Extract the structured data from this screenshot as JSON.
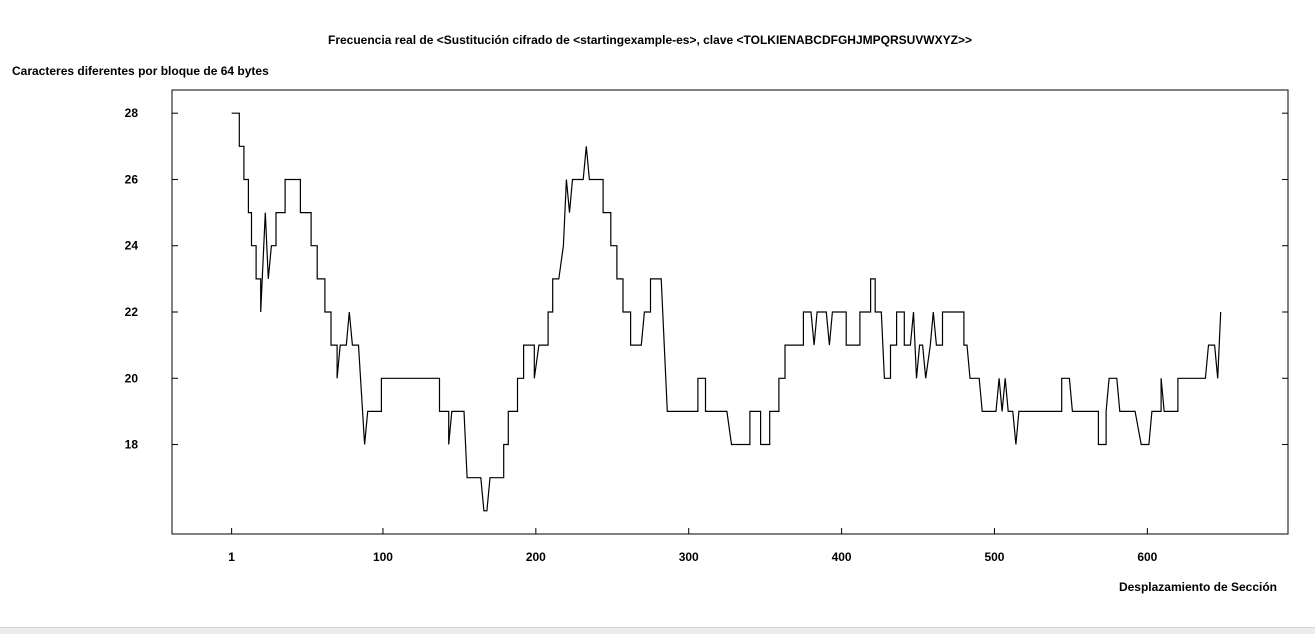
{
  "chart_data": {
    "type": "line",
    "title": "Frecuencia real de <Sustitución cifrado de <startingexample-es>, clave <TOLKIENABCDFGHJMPQRSUVWXYZ>>",
    "ylabel": "Caracteres diferentes por bloque de 64 bytes",
    "xlabel": "Desplazamiento de Sección",
    "xlim": [
      -38,
      692
    ],
    "ylim": [
      15.3,
      28.7
    ],
    "x_ticks": [
      1,
      100,
      200,
      300,
      400,
      500,
      600
    ],
    "y_ticks": [
      18,
      20,
      22,
      24,
      26,
      28
    ],
    "grid": false,
    "series": [
      {
        "color": "#000000",
        "points": [
          [
            1,
            28
          ],
          [
            6,
            28
          ],
          [
            6,
            27
          ],
          [
            9,
            27
          ],
          [
            9,
            26
          ],
          [
            12,
            26
          ],
          [
            12,
            25
          ],
          [
            14,
            25
          ],
          [
            14,
            24
          ],
          [
            17,
            24
          ],
          [
            17,
            23
          ],
          [
            20,
            23
          ],
          [
            20,
            22
          ],
          [
            23,
            25
          ],
          [
            25,
            23
          ],
          [
            27,
            24
          ],
          [
            30,
            24
          ],
          [
            30,
            25
          ],
          [
            36,
            25
          ],
          [
            36,
            26
          ],
          [
            46,
            26
          ],
          [
            46,
            25
          ],
          [
            53,
            25
          ],
          [
            53,
            24
          ],
          [
            57,
            24
          ],
          [
            57,
            23
          ],
          [
            62,
            23
          ],
          [
            62,
            22
          ],
          [
            66,
            22
          ],
          [
            66,
            21
          ],
          [
            70,
            21
          ],
          [
            70,
            20
          ],
          [
            72,
            21
          ],
          [
            76,
            21
          ],
          [
            78,
            22
          ],
          [
            80,
            21
          ],
          [
            84,
            21
          ],
          [
            88,
            18
          ],
          [
            90,
            19
          ],
          [
            99,
            19
          ],
          [
            99,
            20
          ],
          [
            137,
            20
          ],
          [
            137,
            19
          ],
          [
            143,
            19
          ],
          [
            143,
            18
          ],
          [
            145,
            19
          ],
          [
            153,
            19
          ],
          [
            155,
            17
          ],
          [
            164,
            17
          ],
          [
            166,
            16
          ],
          [
            168,
            16
          ],
          [
            170,
            17
          ],
          [
            179,
            17
          ],
          [
            179,
            18
          ],
          [
            182,
            18
          ],
          [
            182,
            19
          ],
          [
            188,
            19
          ],
          [
            188,
            20
          ],
          [
            192,
            20
          ],
          [
            192,
            21
          ],
          [
            199,
            21
          ],
          [
            199,
            20
          ],
          [
            202,
            21
          ],
          [
            208,
            21
          ],
          [
            208,
            22
          ],
          [
            211,
            22
          ],
          [
            211,
            23
          ],
          [
            215,
            23
          ],
          [
            218,
            24
          ],
          [
            220,
            26
          ],
          [
            222,
            25
          ],
          [
            224,
            26
          ],
          [
            231,
            26
          ],
          [
            233,
            27
          ],
          [
            235,
            26
          ],
          [
            244,
            26
          ],
          [
            244,
            25
          ],
          [
            249,
            25
          ],
          [
            249,
            24
          ],
          [
            253,
            24
          ],
          [
            253,
            23
          ],
          [
            257,
            23
          ],
          [
            257,
            22
          ],
          [
            262,
            22
          ],
          [
            262,
            21
          ],
          [
            269,
            21
          ],
          [
            271,
            22
          ],
          [
            275,
            22
          ],
          [
            275,
            23
          ],
          [
            282,
            23
          ],
          [
            286,
            19
          ],
          [
            306,
            19
          ],
          [
            306,
            20
          ],
          [
            311,
            20
          ],
          [
            311,
            19
          ],
          [
            325,
            19
          ],
          [
            328,
            18
          ],
          [
            340,
            18
          ],
          [
            340,
            19
          ],
          [
            347,
            19
          ],
          [
            347,
            18
          ],
          [
            353,
            18
          ],
          [
            353,
            19
          ],
          [
            359,
            19
          ],
          [
            359,
            20
          ],
          [
            363,
            20
          ],
          [
            363,
            21
          ],
          [
            375,
            21
          ],
          [
            375,
            22
          ],
          [
            380,
            22
          ],
          [
            382,
            21
          ],
          [
            384,
            22
          ],
          [
            390,
            22
          ],
          [
            392,
            21
          ],
          [
            394,
            22
          ],
          [
            403,
            22
          ],
          [
            403,
            21
          ],
          [
            412,
            21
          ],
          [
            412,
            22
          ],
          [
            419,
            22
          ],
          [
            419,
            23
          ],
          [
            422,
            23
          ],
          [
            422,
            22
          ],
          [
            426,
            22
          ],
          [
            428,
            20
          ],
          [
            432,
            20
          ],
          [
            432,
            21
          ],
          [
            436,
            21
          ],
          [
            436,
            22
          ],
          [
            441,
            22
          ],
          [
            441,
            21
          ],
          [
            445,
            21
          ],
          [
            447,
            22
          ],
          [
            449,
            20
          ],
          [
            451,
            21
          ],
          [
            453,
            21
          ],
          [
            455,
            20
          ],
          [
            458,
            21
          ],
          [
            460,
            22
          ],
          [
            462,
            21
          ],
          [
            466,
            21
          ],
          [
            466,
            22
          ],
          [
            480,
            22
          ],
          [
            480,
            21
          ],
          [
            482,
            21
          ],
          [
            484,
            20
          ],
          [
            490,
            20
          ],
          [
            492,
            19
          ],
          [
            501,
            19
          ],
          [
            503,
            20
          ],
          [
            505,
            19
          ],
          [
            507,
            20
          ],
          [
            509,
            19
          ],
          [
            512,
            19
          ],
          [
            514,
            18
          ],
          [
            516,
            19
          ],
          [
            544,
            19
          ],
          [
            544,
            20
          ],
          [
            549,
            20
          ],
          [
            551,
            19
          ],
          [
            568,
            19
          ],
          [
            568,
            18
          ],
          [
            573,
            18
          ],
          [
            573,
            19
          ],
          [
            575,
            20
          ],
          [
            580,
            20
          ],
          [
            582,
            19
          ],
          [
            592,
            19
          ],
          [
            596,
            18
          ],
          [
            601,
            18
          ],
          [
            603,
            19
          ],
          [
            609,
            19
          ],
          [
            609,
            20
          ],
          [
            611,
            19
          ],
          [
            620,
            19
          ],
          [
            620,
            20
          ],
          [
            638,
            20
          ],
          [
            640,
            21
          ],
          [
            644,
            21
          ],
          [
            646,
            20
          ],
          [
            648,
            22
          ]
        ]
      }
    ]
  }
}
